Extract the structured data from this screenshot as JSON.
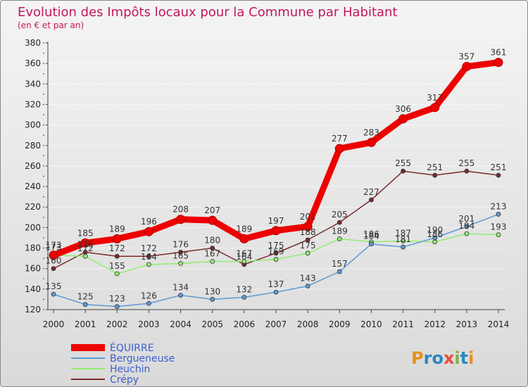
{
  "chart_data": {
    "type": "line",
    "title": "Evolution des Impôts locaux pour la Commune par Habitant",
    "subtitle": "(en € et par an)",
    "xlabel": "",
    "ylabel": "",
    "ylim": [
      120,
      380
    ],
    "yticks": [
      120,
      140,
      160,
      180,
      200,
      220,
      240,
      260,
      280,
      300,
      320,
      340,
      360,
      380
    ],
    "categories": [
      "2000",
      "2001",
      "2002",
      "2003",
      "2004",
      "2005",
      "2006",
      "2007",
      "2008",
      "2009",
      "2010",
      "2011",
      "2012",
      "2013",
      "2014"
    ],
    "series": [
      {
        "name": "ÉQUIRRE",
        "color": "#ee0000",
        "values": [
          173,
          185,
          189,
          196,
          208,
          207,
          189,
          197,
          201,
          277,
          283,
          306,
          317,
          357,
          361
        ]
      },
      {
        "name": "Bergueneuse",
        "color": "#5b9bd5",
        "values": [
          135,
          125,
          123,
          126,
          134,
          130,
          132,
          137,
          143,
          157,
          184,
          181,
          190,
          201,
          213
        ]
      },
      {
        "name": "Heuchin",
        "color": "#90ee70",
        "values": [
          173,
          172,
          155,
          164,
          165,
          167,
          167,
          169,
          175,
          189,
          186,
          187,
          186,
          194,
          193
        ]
      },
      {
        "name": "Crépy",
        "color": "#7a2a2a",
        "values": [
          160,
          176,
          172,
          172,
          176,
          180,
          164,
          175,
          188,
          205,
          227,
          255,
          251,
          255,
          251
        ]
      }
    ],
    "legend_position": "bottom-left",
    "watermark": "Proxiti"
  }
}
